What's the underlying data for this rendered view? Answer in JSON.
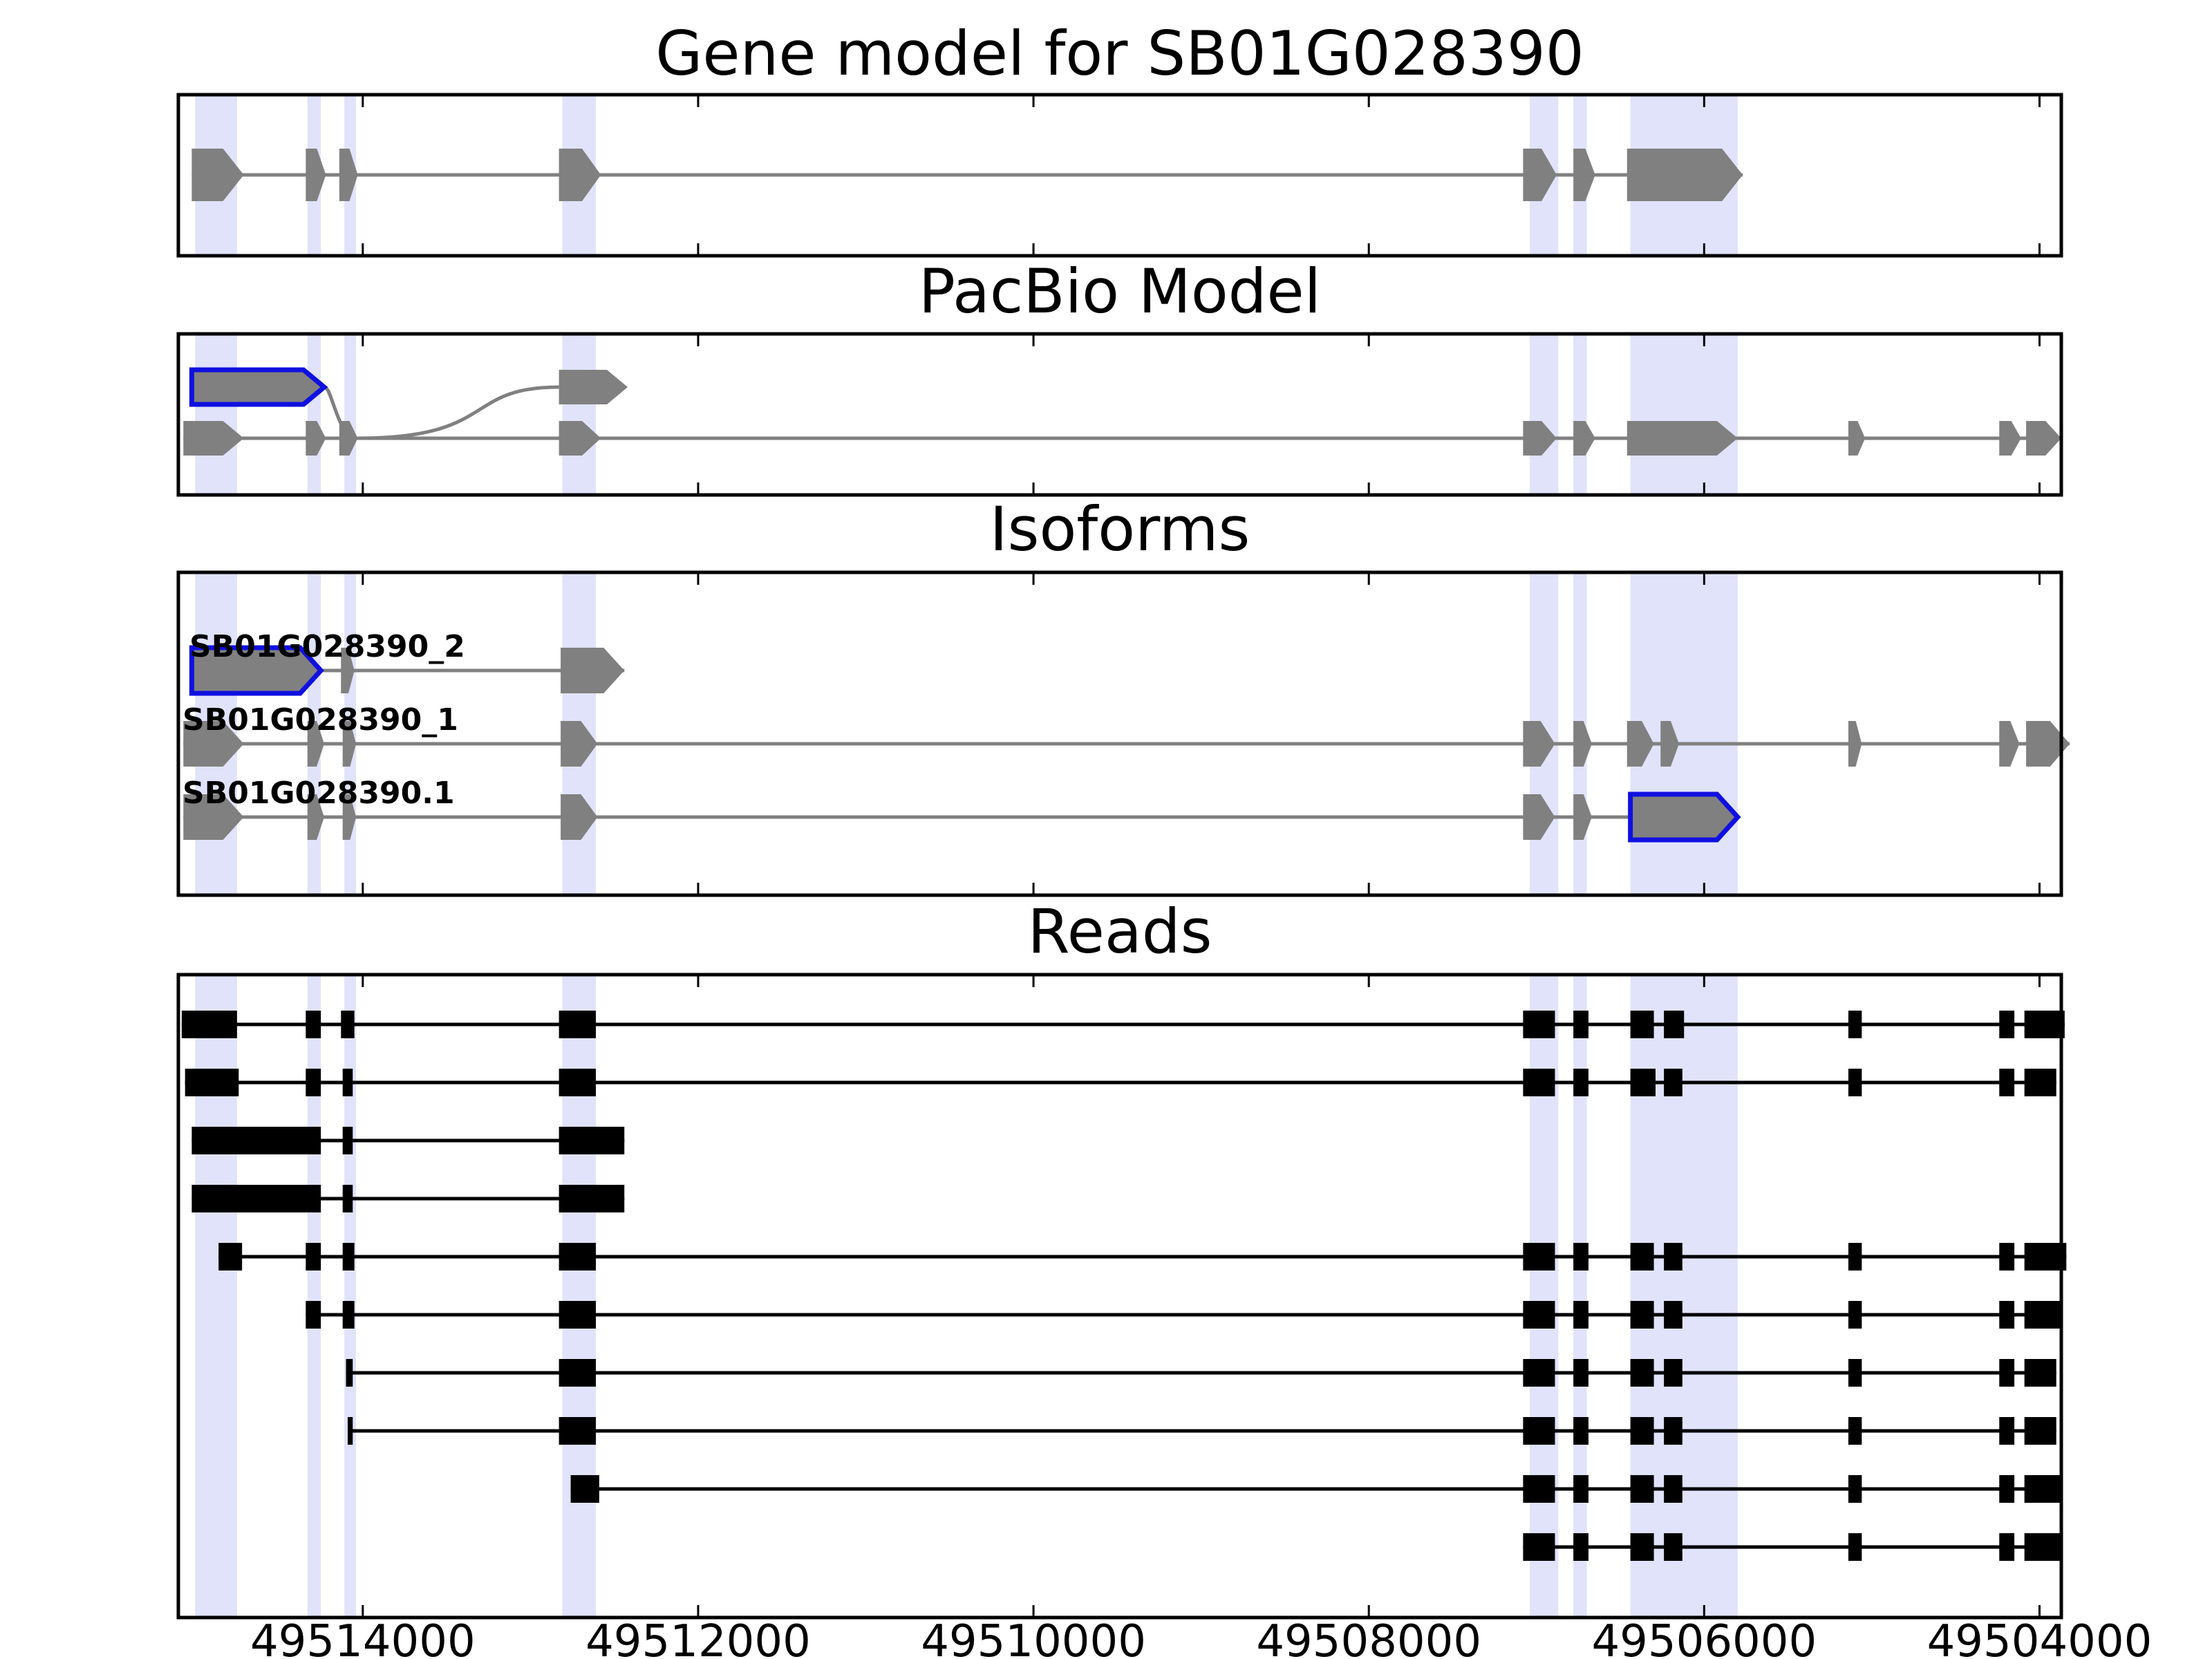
{
  "figure_title": "Gene model for SB01G028390",
  "colors": {
    "highlight": "#e0e3fa",
    "exon": "#808080",
    "intron": "#808080",
    "read": "#000000",
    "selected_outline": "#1010e0",
    "frame": "#000000"
  },
  "axis": {
    "direction": "reversed",
    "xlim": [
      49515100,
      49503870
    ],
    "ticks": [
      49514000,
      49512000,
      49510000,
      49508000,
      49506000,
      49504000
    ],
    "tick_labels": [
      "49514000",
      "49512000",
      "49510000",
      "49508000",
      "49506000",
      "49504000"
    ]
  },
  "highlights": [
    [
      49515000,
      49514750
    ],
    [
      49514330,
      49514250
    ],
    [
      49514110,
      49514040
    ],
    [
      49512810,
      49512610
    ],
    [
      49507040,
      49506870
    ],
    [
      49506780,
      49506700
    ],
    [
      49506440,
      49505800
    ]
  ],
  "panels": {
    "gene_model": {
      "title": "Gene model for SB01G028390",
      "tracks": [
        {
          "exons": [
            [
              49515020,
              49514710
            ],
            [
              49514340,
              49514220
            ],
            [
              49514140,
              49514030
            ],
            [
              49512830,
              49512580
            ],
            [
              49507080,
              49506880
            ],
            [
              49506780,
              49506650
            ],
            [
              49506460,
              49505770
            ]
          ],
          "selected": []
        }
      ]
    },
    "pacbio": {
      "title": "PacBio Model",
      "tracks": [
        {
          "exons": [
            [
              49515020,
              49514230
            ],
            [
              49512830,
              49512420
            ]
          ],
          "selected": [
            0
          ],
          "curve_to_track": 1,
          "curve_from": 49514230,
          "curve_to": 49514030
        },
        {
          "exons": [
            [
              49515070,
              49514710
            ],
            [
              49514340,
              49514220
            ],
            [
              49514140,
              49514030
            ],
            [
              49512830,
              49512580
            ],
            [
              49507080,
              49506880
            ],
            [
              49506780,
              49506650
            ],
            [
              49506460,
              49505800
            ],
            [
              49506260,
              49506110
            ],
            [
              49505140,
              49505040
            ],
            [
              49504240,
              49504110
            ],
            [
              49504080,
              49503870
            ]
          ],
          "selected": []
        }
      ]
    },
    "isoforms": {
      "title": "Isoforms",
      "tracks": [
        {
          "label": "SB01G028390_2",
          "exons": [
            [
              49515020,
              49514250
            ],
            [
              49514130,
              49514050
            ],
            [
              49512820,
              49512440
            ]
          ],
          "selected": [
            0
          ]
        },
        {
          "label": "SB01G028390_1",
          "exons": [
            [
              49515070,
              49514710
            ],
            [
              49514330,
              49514230
            ],
            [
              49514120,
              49514040
            ],
            [
              49512820,
              49512600
            ],
            [
              49507080,
              49506890
            ],
            [
              49506780,
              49506670
            ],
            [
              49506460,
              49506300
            ],
            [
              49506260,
              49506150
            ],
            [
              49505140,
              49505060
            ],
            [
              49504240,
              49504120
            ],
            [
              49504080,
              49503820
            ]
          ],
          "selected": []
        },
        {
          "label": "SB01G028390.1",
          "exons": [
            [
              49515070,
              49514710
            ],
            [
              49514330,
              49514230
            ],
            [
              49514120,
              49514040
            ],
            [
              49512820,
              49512600
            ],
            [
              49507080,
              49506890
            ],
            [
              49506780,
              49506670
            ],
            [
              49506440,
              49505800
            ]
          ],
          "selected": [
            6
          ]
        }
      ]
    },
    "reads": {
      "title": "Reads",
      "rows": [
        {
          "exons": [
            [
              49515080,
              49514750
            ],
            [
              49514340,
              49514250
            ],
            [
              49514130,
              49514050
            ],
            [
              49512830,
              49512610
            ],
            [
              49507080,
              49506890
            ],
            [
              49506780,
              49506690
            ],
            [
              49506440,
              49506300
            ],
            [
              49506240,
              49506120
            ],
            [
              49505140,
              49505060
            ],
            [
              49504240,
              49504150
            ],
            [
              49504090,
              49503850
            ]
          ]
        },
        {
          "exons": [
            [
              49515060,
              49514740
            ],
            [
              49514340,
              49514250
            ],
            [
              49514120,
              49514060
            ],
            [
              49512830,
              49512610
            ],
            [
              49507080,
              49506890
            ],
            [
              49506780,
              49506690
            ],
            [
              49506440,
              49506290
            ],
            [
              49506240,
              49506130
            ],
            [
              49505140,
              49505060
            ],
            [
              49504240,
              49504150
            ],
            [
              49504090,
              49503900
            ]
          ]
        },
        {
          "exons": [
            [
              49515020,
              49514250
            ],
            [
              49514120,
              49514060
            ],
            [
              49512830,
              49512440
            ]
          ]
        },
        {
          "exons": [
            [
              49515020,
              49514250
            ],
            [
              49514120,
              49514060
            ],
            [
              49512830,
              49512440
            ]
          ]
        },
        {
          "exons": [
            [
              49514860,
              49514720
            ],
            [
              49514340,
              49514250
            ],
            [
              49514120,
              49514050
            ],
            [
              49512830,
              49512610
            ],
            [
              49507080,
              49506890
            ],
            [
              49506780,
              49506690
            ],
            [
              49506440,
              49506300
            ],
            [
              49506240,
              49506130
            ],
            [
              49505140,
              49505060
            ],
            [
              49504240,
              49504150
            ],
            [
              49504090,
              49503840
            ]
          ]
        },
        {
          "exons": [
            [
              49514340,
              49514250
            ],
            [
              49514120,
              49514050
            ],
            [
              49512830,
              49512610
            ],
            [
              49507080,
              49506890
            ],
            [
              49506780,
              49506690
            ],
            [
              49506440,
              49506300
            ],
            [
              49506240,
              49506130
            ],
            [
              49505140,
              49505060
            ],
            [
              49504240,
              49504150
            ],
            [
              49504090,
              49503860
            ]
          ]
        },
        {
          "exons": [
            [
              49514100,
              49514060
            ],
            [
              49512830,
              49512610
            ],
            [
              49507080,
              49506890
            ],
            [
              49506780,
              49506690
            ],
            [
              49506440,
              49506300
            ],
            [
              49506240,
              49506130
            ],
            [
              49505140,
              49505060
            ],
            [
              49504240,
              49504150
            ],
            [
              49504090,
              49503900
            ]
          ]
        },
        {
          "exons": [
            [
              49514090,
              49514060
            ],
            [
              49512830,
              49512610
            ],
            [
              49507080,
              49506890
            ],
            [
              49506780,
              49506690
            ],
            [
              49506440,
              49506300
            ],
            [
              49506240,
              49506130
            ],
            [
              49505140,
              49505060
            ],
            [
              49504240,
              49504150
            ],
            [
              49504090,
              49503900
            ]
          ]
        },
        {
          "exons": [
            [
              49512760,
              49512590
            ],
            [
              49507080,
              49506890
            ],
            [
              49506780,
              49506690
            ],
            [
              49506440,
              49506300
            ],
            [
              49506240,
              49506130
            ],
            [
              49505140,
              49505060
            ],
            [
              49504240,
              49504150
            ],
            [
              49504090,
              49503860
            ]
          ]
        },
        {
          "exons": [
            [
              49507080,
              49506890
            ],
            [
              49506780,
              49506690
            ],
            [
              49506440,
              49506300
            ],
            [
              49506240,
              49506130
            ],
            [
              49505140,
              49505060
            ],
            [
              49504240,
              49504150
            ],
            [
              49504090,
              49503860
            ]
          ]
        }
      ]
    }
  }
}
